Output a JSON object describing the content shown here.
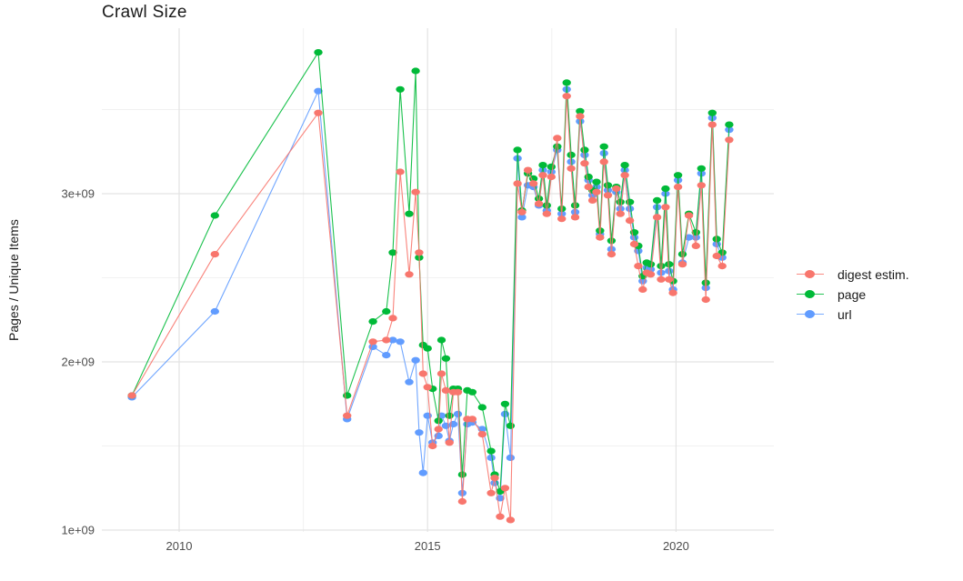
{
  "chart_data": {
    "type": "line",
    "title": "Crawl Size",
    "xlabel": "",
    "ylabel": "Pages / Unique Items",
    "legend_position": "right-center",
    "grid": true,
    "background_color": "#FFFFFF",
    "grid_major_color": "#E3E3E3",
    "grid_minor_color": "#F1F1F1",
    "tick_label_color": "#4D4D4D",
    "x_tick_labels": [
      "2010",
      "2015",
      "2020"
    ],
    "x_tick_values": [
      2010,
      2015,
      2020
    ],
    "x_minor_ticks": [
      2012.5,
      2017.5
    ],
    "y_tick_labels": [
      "1e+09",
      "2e+09",
      "3e+09"
    ],
    "y_tick_values_billions": [
      1,
      2,
      3
    ],
    "y_minor_ticks_billions": [
      1.5,
      2.5,
      3.5
    ],
    "xlim": [
      2008.45,
      2021.97
    ],
    "ylim_billions": [
      0.99,
      3.99
    ],
    "values_unit": "billions (1e+09) of pages / unique items",
    "x": [
      2009.05,
      2010.72,
      2012.8,
      2013.38,
      2013.9,
      2014.17,
      2014.3,
      2014.45,
      2014.63,
      2014.76,
      2014.83,
      2014.91,
      2015.0,
      2015.1,
      2015.22,
      2015.28,
      2015.37,
      2015.44,
      2015.52,
      2015.61,
      2015.7,
      2015.8,
      2015.9,
      2016.1,
      2016.28,
      2016.35,
      2016.46,
      2016.56,
      2016.67,
      2016.81,
      2016.9,
      2017.02,
      2017.13,
      2017.24,
      2017.32,
      2017.4,
      2017.49,
      2017.61,
      2017.7,
      2017.8,
      2017.89,
      2017.97,
      2018.07,
      2018.16,
      2018.24,
      2018.32,
      2018.4,
      2018.47,
      2018.55,
      2018.63,
      2018.7,
      2018.8,
      2018.88,
      2018.97,
      2019.07,
      2019.16,
      2019.24,
      2019.33,
      2019.41,
      2019.49,
      2019.62,
      2019.7,
      2019.79,
      2019.86,
      2019.94,
      2020.04,
      2020.13,
      2020.26,
      2020.4,
      2020.51,
      2020.6,
      2020.73,
      2020.82,
      2020.93,
      2021.07
    ],
    "series": [
      {
        "name": "url",
        "color": "#619CFF",
        "values": [
          1.79,
          2.3,
          3.61,
          1.66,
          2.09,
          2.04,
          2.13,
          2.12,
          1.88,
          2.01,
          1.58,
          1.34,
          1.68,
          1.52,
          1.56,
          1.68,
          1.62,
          1.53,
          1.63,
          1.69,
          1.22,
          1.63,
          1.64,
          1.6,
          1.43,
          1.28,
          1.19,
          1.69,
          1.43,
          3.21,
          2.86,
          3.05,
          3.04,
          2.93,
          3.14,
          2.9,
          3.13,
          3.26,
          2.88,
          3.62,
          3.19,
          2.89,
          3.43,
          3.23,
          3.08,
          2.99,
          3.04,
          2.76,
          3.24,
          3.02,
          2.67,
          3.01,
          2.91,
          3.14,
          2.91,
          2.74,
          2.66,
          2.48,
          2.56,
          2.55,
          2.92,
          2.53,
          3.0,
          2.54,
          2.43,
          3.08,
          2.59,
          2.74,
          2.74,
          3.12,
          2.44,
          3.45,
          2.7,
          2.62,
          3.38
        ]
      },
      {
        "name": "page",
        "color": "#00BA38",
        "values": [
          1.8,
          2.87,
          3.84,
          1.8,
          2.24,
          2.3,
          2.65,
          3.62,
          2.88,
          3.73,
          2.62,
          2.1,
          2.08,
          1.84,
          1.65,
          2.13,
          2.02,
          1.68,
          1.84,
          1.84,
          1.33,
          1.83,
          1.82,
          1.73,
          1.47,
          1.33,
          1.23,
          1.75,
          1.62,
          3.26,
          2.9,
          3.12,
          3.09,
          2.97,
          3.17,
          2.93,
          3.16,
          3.28,
          2.91,
          3.66,
          3.23,
          2.93,
          3.49,
          3.26,
          3.1,
          3.02,
          3.07,
          2.78,
          3.28,
          3.05,
          2.72,
          3.04,
          2.95,
          3.17,
          2.95,
          2.77,
          2.69,
          2.51,
          2.59,
          2.58,
          2.96,
          2.57,
          3.03,
          2.58,
          2.48,
          3.11,
          2.64,
          2.88,
          2.77,
          3.15,
          2.47,
          3.48,
          2.73,
          2.65,
          3.41
        ]
      },
      {
        "name": "digest estim.",
        "color": "#F8766D",
        "values": [
          1.8,
          2.64,
          3.48,
          1.68,
          2.12,
          2.13,
          2.26,
          3.13,
          2.52,
          3.01,
          2.65,
          1.93,
          1.85,
          1.5,
          1.6,
          1.93,
          1.83,
          1.52,
          1.82,
          1.82,
          1.17,
          1.66,
          1.66,
          1.57,
          1.22,
          1.31,
          1.08,
          1.25,
          1.06,
          3.06,
          2.89,
          3.14,
          3.06,
          2.94,
          3.11,
          2.88,
          3.1,
          3.33,
          2.85,
          3.58,
          3.15,
          2.86,
          3.46,
          3.18,
          3.04,
          2.96,
          3.01,
          2.74,
          3.19,
          2.99,
          2.64,
          3.03,
          2.88,
          3.11,
          2.84,
          2.7,
          2.57,
          2.43,
          2.53,
          2.52,
          2.86,
          2.49,
          2.92,
          2.49,
          2.41,
          3.04,
          2.58,
          2.87,
          2.69,
          3.05,
          2.37,
          3.41,
          2.63,
          2.57,
          3.32
        ]
      }
    ]
  },
  "legend": {
    "items": [
      {
        "label": "digest estim.",
        "color": "#F8766D"
      },
      {
        "label": "page",
        "color": "#00BA38"
      },
      {
        "label": "url",
        "color": "#619CFF"
      }
    ]
  }
}
